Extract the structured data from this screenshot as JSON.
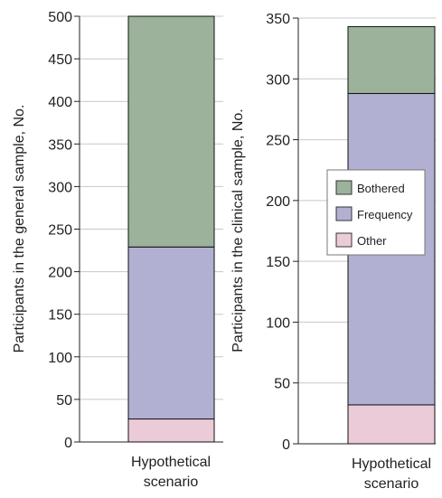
{
  "chart_data": [
    {
      "type": "bar",
      "stacked": true,
      "categories": [
        "Hypothetical scenario"
      ],
      "category_lines": [
        "Hypothetical",
        "scenario"
      ],
      "ylabel": "Participants in the general sample, No.",
      "ylim": [
        0,
        500
      ],
      "yticks": [
        0,
        50,
        100,
        150,
        200,
        250,
        300,
        350,
        400,
        450,
        500
      ],
      "grid": true,
      "series": [
        {
          "name": "Other",
          "values": [
            27
          ]
        },
        {
          "name": "Frequency",
          "values": [
            202
          ]
        },
        {
          "name": "Bothered",
          "values": [
            271
          ]
        }
      ]
    },
    {
      "type": "bar",
      "stacked": true,
      "categories": [
        "Hypothetical scenario"
      ],
      "category_lines": [
        "Hypothetical",
        "scenario"
      ],
      "ylabel": "Participants in the clinical sample, No.",
      "ylim": [
        0,
        350
      ],
      "yticks": [
        0,
        50,
        100,
        150,
        200,
        250,
        300,
        350
      ],
      "grid": true,
      "legend": {
        "placement": "center-right",
        "entries": [
          "Bothered",
          "Frequency",
          "Other"
        ]
      },
      "series": [
        {
          "name": "Other",
          "values": [
            32
          ]
        },
        {
          "name": "Frequency",
          "values": [
            256
          ]
        },
        {
          "name": "Bothered",
          "values": [
            55
          ]
        }
      ]
    }
  ],
  "colors": {
    "Bothered": "#9cb29b",
    "Frequency": "#b1b0d2",
    "Other": "#eccbd9",
    "grid": "#c8c8c8",
    "axis": "#222222"
  }
}
